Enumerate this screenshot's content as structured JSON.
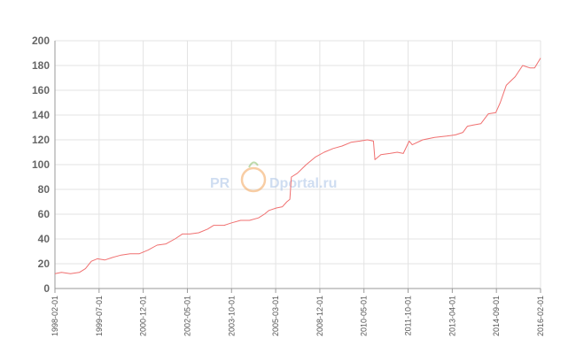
{
  "watermark": {
    "left_text": "PR",
    "right_text": "Dportal.ru",
    "color": "#a9c3e6",
    "logo_color": "#f4a65a"
  },
  "chart_data": {
    "type": "line",
    "title": "",
    "xlabel": "",
    "ylabel": "",
    "ylim": [
      0,
      200
    ],
    "yticks": [
      0,
      20,
      40,
      60,
      80,
      100,
      120,
      140,
      160,
      180,
      200
    ],
    "grid": true,
    "line_color": "#f07070",
    "x_tick_labels": [
      "1998-02-01",
      "1999-07-01",
      "2000-12-01",
      "2002-05-01",
      "2003-10-01",
      "2005-03-01",
      "2008-12-01",
      "2010-05-01",
      "2011-10-01",
      "2013-04-01",
      "2014-09-01",
      "2016-02-01"
    ],
    "series": [
      {
        "points": [
          [
            1998.08,
            12
          ],
          [
            1998.3,
            13
          ],
          [
            1998.6,
            12
          ],
          [
            1998.9,
            13
          ],
          [
            1999.1,
            16
          ],
          [
            1999.3,
            22
          ],
          [
            1999.5,
            24
          ],
          [
            1999.75,
            23
          ],
          [
            2000.0,
            25
          ],
          [
            2000.3,
            27
          ],
          [
            2000.6,
            28
          ],
          [
            2000.9,
            28
          ],
          [
            2001.2,
            31
          ],
          [
            2001.5,
            35
          ],
          [
            2001.8,
            36
          ],
          [
            2002.1,
            40
          ],
          [
            2002.35,
            44
          ],
          [
            2002.6,
            44
          ],
          [
            2002.9,
            45
          ],
          [
            2003.2,
            48
          ],
          [
            2003.4,
            51
          ],
          [
            2003.75,
            51
          ],
          [
            2004.0,
            53
          ],
          [
            2004.3,
            55
          ],
          [
            2004.6,
            55
          ],
          [
            2004.9,
            57
          ],
          [
            2005.1,
            60
          ],
          [
            2005.25,
            63
          ],
          [
            2005.5,
            65
          ],
          [
            2005.7,
            66
          ],
          [
            2005.85,
            70
          ],
          [
            2005.95,
            72
          ],
          [
            2006.0,
            90
          ],
          [
            2006.2,
            93
          ],
          [
            2006.5,
            100
          ],
          [
            2006.8,
            106
          ],
          [
            2007.1,
            110
          ],
          [
            2007.4,
            113
          ],
          [
            2007.7,
            115
          ],
          [
            2008.0,
            118
          ],
          [
            2008.3,
            119
          ],
          [
            2008.55,
            120
          ],
          [
            2008.75,
            119
          ],
          [
            2008.8,
            104
          ],
          [
            2009.0,
            108
          ],
          [
            2009.3,
            109
          ],
          [
            2009.55,
            110
          ],
          [
            2009.75,
            109
          ],
          [
            2009.95,
            119
          ],
          [
            2010.05,
            116
          ],
          [
            2010.4,
            120
          ],
          [
            2010.8,
            122
          ],
          [
            2011.2,
            123
          ],
          [
            2011.5,
            124
          ],
          [
            2011.75,
            126
          ],
          [
            2011.9,
            131
          ],
          [
            2012.1,
            132
          ],
          [
            2012.35,
            133
          ],
          [
            2012.6,
            141
          ],
          [
            2012.85,
            142
          ],
          [
            2013.0,
            150
          ],
          [
            2013.2,
            164
          ],
          [
            2013.5,
            171
          ],
          [
            2013.75,
            180
          ],
          [
            2014.0,
            178
          ],
          [
            2014.15,
            178
          ],
          [
            2014.35,
            186
          ]
        ]
      }
    ]
  }
}
